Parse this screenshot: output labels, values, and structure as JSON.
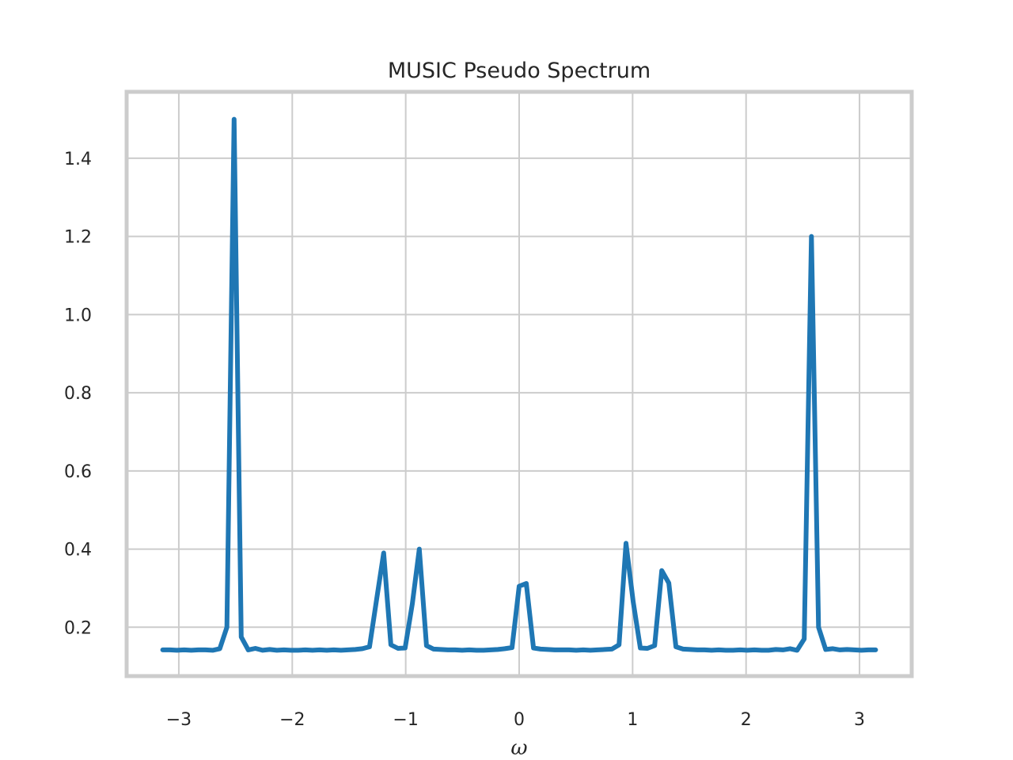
{
  "chart_data": {
    "type": "line",
    "title": "MUSIC Pseudo Spectrum",
    "xlabel": "ω",
    "ylabel": "",
    "xlim": [
      -3.46,
      3.46
    ],
    "ylim": [
      0.075,
      1.57
    ],
    "grid": true,
    "xticks": [
      -3,
      -2,
      -1,
      0,
      1,
      2,
      3
    ],
    "xtick_labels": [
      "−3",
      "−2",
      "−1",
      "0",
      "1",
      "2",
      "3"
    ],
    "yticks": [
      0.2,
      0.4,
      0.6,
      0.8,
      1.0,
      1.2,
      1.4
    ],
    "ytick_labels": [
      "0.2",
      "0.4",
      "0.6",
      "0.8",
      "1.0",
      "1.2",
      "1.4"
    ],
    "series": [
      {
        "color": "#1f77b4",
        "x": [
          -3.142,
          -3.079,
          -3.016,
          -2.953,
          -2.89,
          -2.827,
          -2.765,
          -2.702,
          -2.639,
          -2.576,
          -2.513,
          -2.45,
          -2.388,
          -2.325,
          -2.262,
          -2.199,
          -2.136,
          -2.073,
          -2.011,
          -1.948,
          -1.885,
          -1.822,
          -1.759,
          -1.696,
          -1.634,
          -1.571,
          -1.508,
          -1.445,
          -1.382,
          -1.319,
          -1.257,
          -1.194,
          -1.131,
          -1.068,
          -1.005,
          -0.942,
          -0.88,
          -0.817,
          -0.754,
          -0.691,
          -0.628,
          -0.565,
          -0.503,
          -0.44,
          -0.377,
          -0.314,
          -0.251,
          -0.188,
          -0.126,
          -0.063,
          0.0,
          0.063,
          0.126,
          0.188,
          0.251,
          0.314,
          0.377,
          0.44,
          0.503,
          0.565,
          0.628,
          0.691,
          0.754,
          0.817,
          0.88,
          0.942,
          1.005,
          1.068,
          1.131,
          1.194,
          1.257,
          1.319,
          1.382,
          1.445,
          1.508,
          1.571,
          1.634,
          1.696,
          1.759,
          1.822,
          1.885,
          1.948,
          2.011,
          2.073,
          2.136,
          2.199,
          2.262,
          2.325,
          2.388,
          2.45,
          2.513,
          2.576,
          2.639,
          2.702,
          2.765,
          2.827,
          2.89,
          2.953,
          3.016,
          3.079,
          3.142
        ],
        "y": [
          0.142,
          0.142,
          0.141,
          0.142,
          0.141,
          0.142,
          0.142,
          0.141,
          0.145,
          0.2,
          1.5,
          0.175,
          0.142,
          0.146,
          0.141,
          0.143,
          0.141,
          0.142,
          0.141,
          0.141,
          0.142,
          0.141,
          0.142,
          0.141,
          0.142,
          0.141,
          0.142,
          0.143,
          0.145,
          0.15,
          0.27,
          0.39,
          0.155,
          0.146,
          0.147,
          0.26,
          0.4,
          0.153,
          0.144,
          0.143,
          0.142,
          0.142,
          0.141,
          0.142,
          0.141,
          0.141,
          0.142,
          0.143,
          0.145,
          0.148,
          0.305,
          0.312,
          0.147,
          0.144,
          0.143,
          0.142,
          0.142,
          0.142,
          0.141,
          0.142,
          0.141,
          0.142,
          0.143,
          0.144,
          0.155,
          0.415,
          0.265,
          0.147,
          0.146,
          0.153,
          0.345,
          0.313,
          0.15,
          0.144,
          0.143,
          0.142,
          0.142,
          0.141,
          0.142,
          0.141,
          0.141,
          0.142,
          0.141,
          0.142,
          0.141,
          0.141,
          0.143,
          0.142,
          0.145,
          0.141,
          0.17,
          1.2,
          0.2,
          0.143,
          0.145,
          0.142,
          0.143,
          0.142,
          0.141,
          0.142,
          0.142
        ]
      }
    ]
  }
}
